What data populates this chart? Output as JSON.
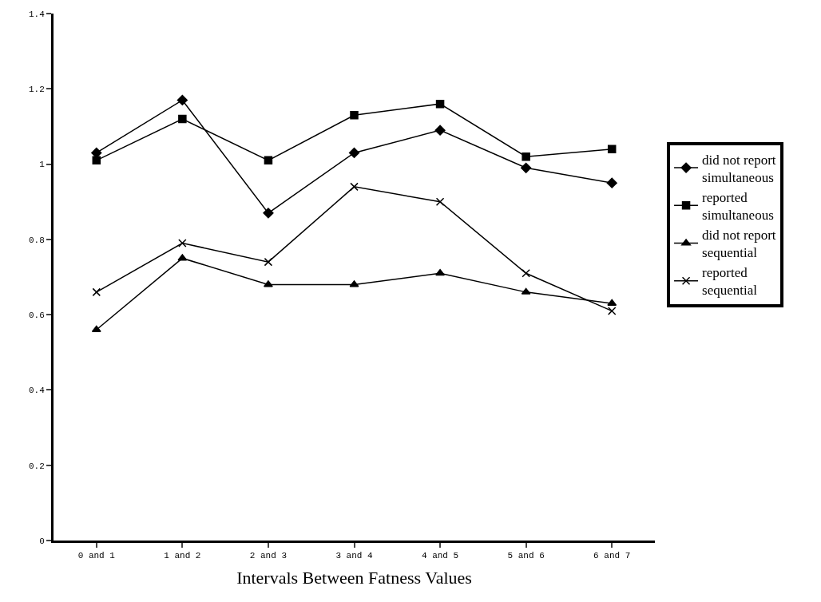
{
  "chart_data": {
    "type": "line",
    "xlabel": "Intervals Between Fatness Values",
    "categories": [
      "0 and 1",
      "1 and 2",
      "2 and 3",
      "3 and 4",
      "4 and 5",
      "5 and 6",
      "6 and 7"
    ],
    "series": [
      {
        "name": "did not report simultaneous",
        "color": "#000000",
        "marker": "diamond",
        "values": [
          1.03,
          1.17,
          0.87,
          1.03,
          1.09,
          0.99,
          0.95
        ]
      },
      {
        "name": "reported simultaneous",
        "color": "#000000",
        "marker": "square",
        "values": [
          1.01,
          1.12,
          1.01,
          1.13,
          1.16,
          1.02,
          1.04
        ]
      },
      {
        "name": "did not report sequential",
        "color": "#000000",
        "marker": "triangle",
        "values": [
          0.56,
          0.75,
          0.68,
          0.68,
          0.71,
          0.66,
          0.63
        ]
      },
      {
        "name": "reported sequential",
        "color": "#000000",
        "marker": "cross",
        "values": [
          0.66,
          0.79,
          0.74,
          0.94,
          0.9,
          0.71,
          0.61
        ]
      }
    ],
    "ylim": [
      0,
      1.4
    ],
    "yticks": [
      0,
      0.2,
      0.4,
      0.6,
      0.8,
      1,
      1.2,
      1.4
    ],
    "grid": false,
    "legend": "right",
    "line_style": "solid"
  }
}
